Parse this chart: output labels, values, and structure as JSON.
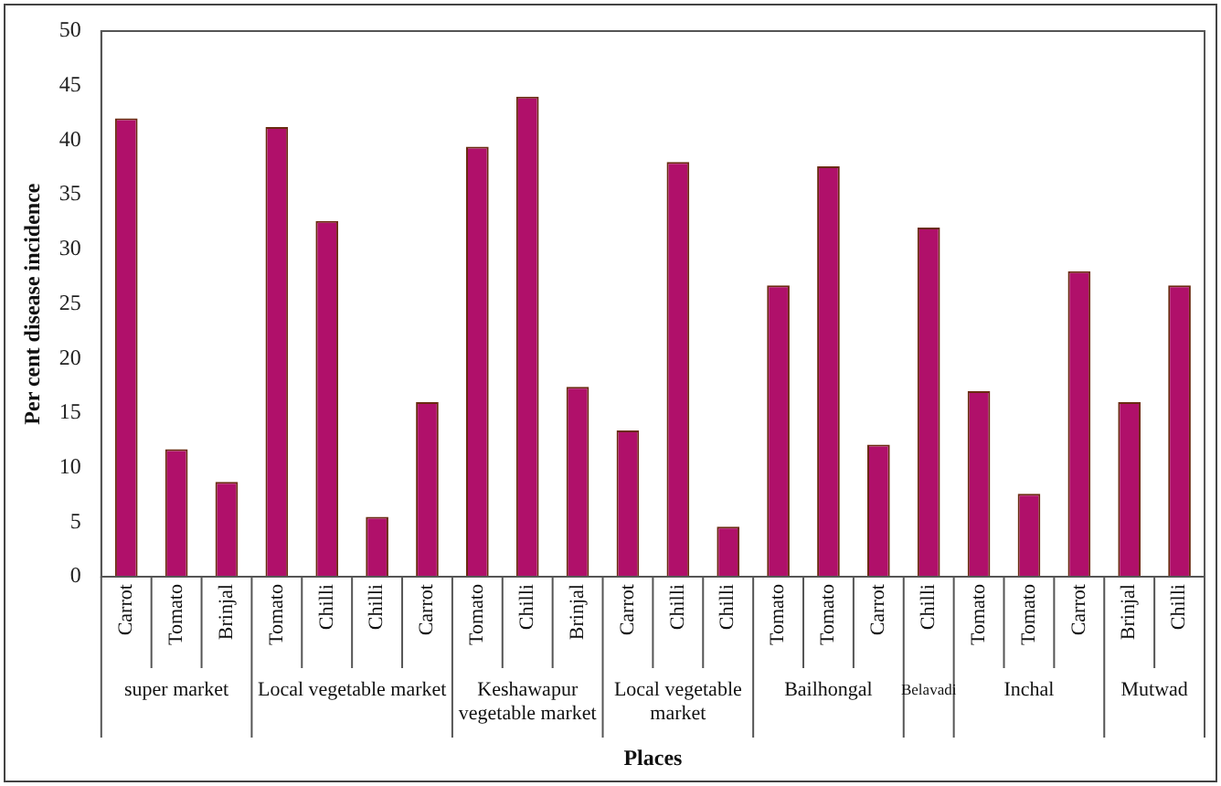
{
  "chart_data": {
    "type": "bar",
    "xlabel": "Places",
    "ylabel": "Per cent disease incidence",
    "categories": [
      "Carrot",
      "Tomato",
      "Brinjal",
      "Tomato",
      "Chilli",
      "Chilli",
      "Carrot",
      "Tomato",
      "Chilli",
      "Brinjal",
      "Carrot",
      "Chilli",
      "Chilli",
      "Tomato",
      "Tomato",
      "Carrot",
      "Chilli",
      "Tomato",
      "Tomato",
      "Carrot",
      "Brinjal",
      "Chilli"
    ],
    "values": [
      42,
      11.7,
      8.7,
      41.2,
      32.6,
      5.5,
      16,
      39.4,
      44,
      17.4,
      13.4,
      38,
      4.6,
      26.7,
      37.6,
      12.1,
      32,
      17,
      7.6,
      28,
      16,
      26.7
    ],
    "color": "#b0106a",
    "ylim": [
      0,
      50
    ],
    "yticks": [
      0,
      5,
      10,
      15,
      20,
      25,
      30,
      35,
      40,
      45,
      50
    ],
    "grid": false,
    "legend": false,
    "annotations": [
      "super market",
      "Local vegetable market",
      "Keshawapur vegetable market",
      "Local vegetable market",
      "Bailhongal",
      "Belavadi",
      "Inchal",
      "Mutwad"
    ]
  }
}
